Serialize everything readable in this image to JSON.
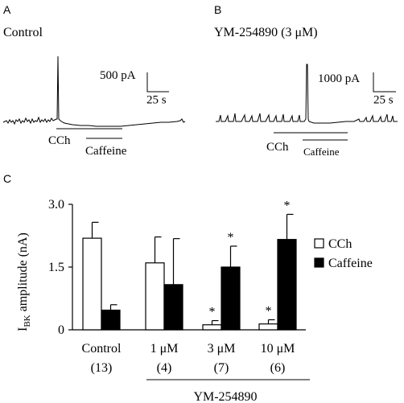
{
  "panels": {
    "a": {
      "letter": "A",
      "title": "Control",
      "scale_current": "500 pA",
      "scale_time": "25 s",
      "bar_cch": "CCh",
      "bar_caffeine": "Caffeine"
    },
    "b": {
      "letter": "B",
      "title": "YM-254890 (3 μM)",
      "scale_current": "1000 pA",
      "scale_time": "25 s",
      "bar_cch": "CCh",
      "bar_caffeine": "Caffeine"
    },
    "c": {
      "letter": "C"
    }
  },
  "chart_data": {
    "type": "bar",
    "ylabel_main": "I",
    "ylabel_sub": "BK",
    "ylabel_rest": " amplitude (nA)",
    "ylim": [
      0,
      3.0
    ],
    "yticks": [
      "0",
      "1.5",
      "3.0"
    ],
    "ytick_values": [
      0,
      1.5,
      3.0
    ],
    "categories": [
      "Control",
      "1 μM",
      "3 μM",
      "10 μM"
    ],
    "n_labels": [
      "(13)",
      "(4)",
      "(7)",
      "(6)"
    ],
    "group_label": "YM-254890",
    "series": [
      {
        "name": "CCh",
        "color": "#ffffff",
        "values": [
          2.19,
          1.6,
          0.12,
          0.14
        ],
        "errors": [
          0.38,
          0.62,
          0.1,
          0.1
        ]
      },
      {
        "name": "Caffeine",
        "color": "#000000",
        "values": [
          0.47,
          1.08,
          1.5,
          2.16
        ],
        "errors": [
          0.13,
          1.1,
          0.5,
          0.6
        ]
      }
    ],
    "significance": [
      {
        "series": 0,
        "index": 2,
        "label": "*"
      },
      {
        "series": 1,
        "index": 2,
        "label": "*"
      },
      {
        "series": 0,
        "index": 3,
        "label": "*"
      },
      {
        "series": 1,
        "index": 3,
        "label": "*"
      }
    ],
    "legend_position": "top-right"
  }
}
